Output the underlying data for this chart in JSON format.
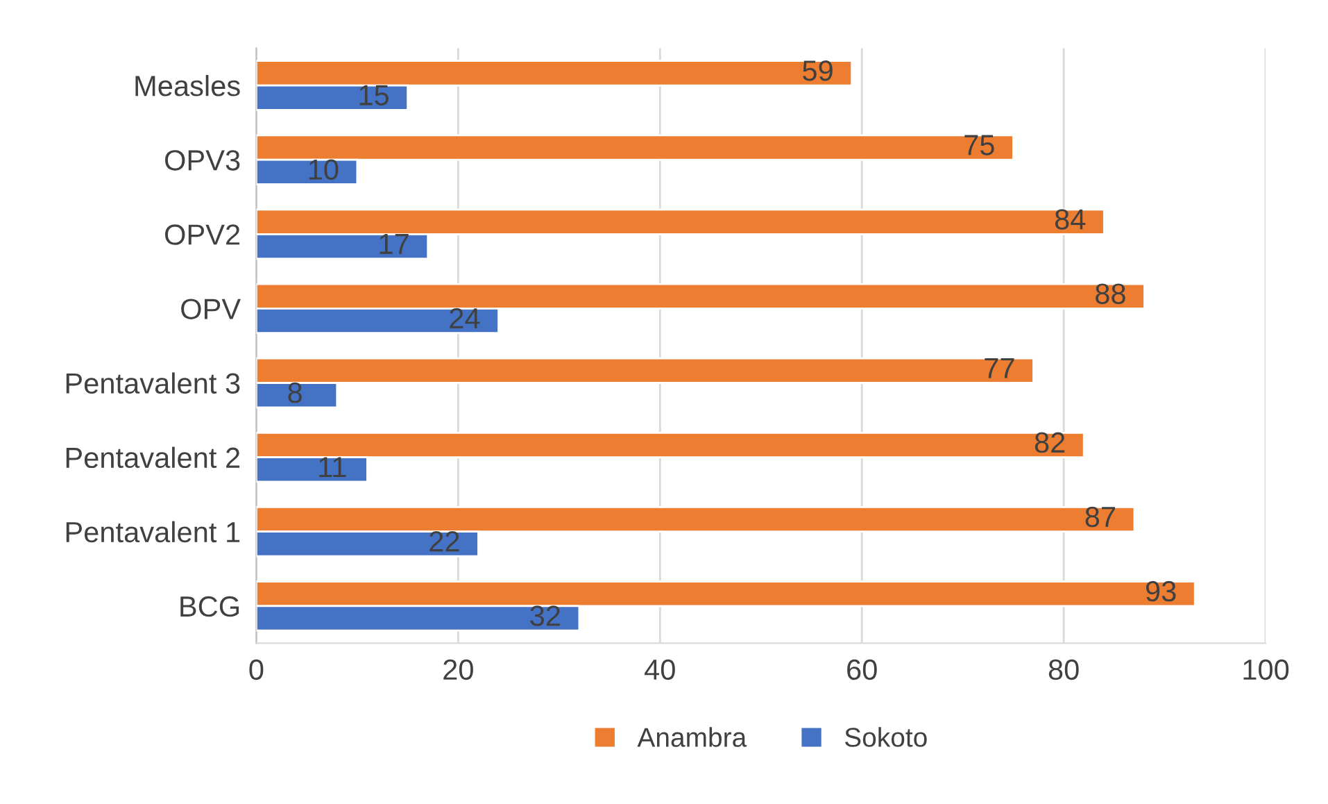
{
  "chart_data": {
    "type": "bar",
    "orientation": "horizontal",
    "categories": [
      "Measles",
      "OPV3",
      "OPV2",
      "OPV",
      "Pentavalent 3",
      "Pentavalent 2",
      "Pentavalent 1",
      "BCG"
    ],
    "series": [
      {
        "name": "Anambra",
        "color": "#ed7d31",
        "values": [
          59,
          75,
          84,
          88,
          77,
          82,
          87,
          93
        ]
      },
      {
        "name": "Sokoto",
        "color": "#4472c4",
        "values": [
          15,
          10,
          17,
          24,
          8,
          11,
          22,
          32
        ]
      }
    ],
    "xlim": [
      0,
      100
    ],
    "xticks": [
      0,
      20,
      40,
      60,
      80,
      100
    ],
    "grid": "x",
    "legend": "bottom",
    "data_labels": true
  }
}
